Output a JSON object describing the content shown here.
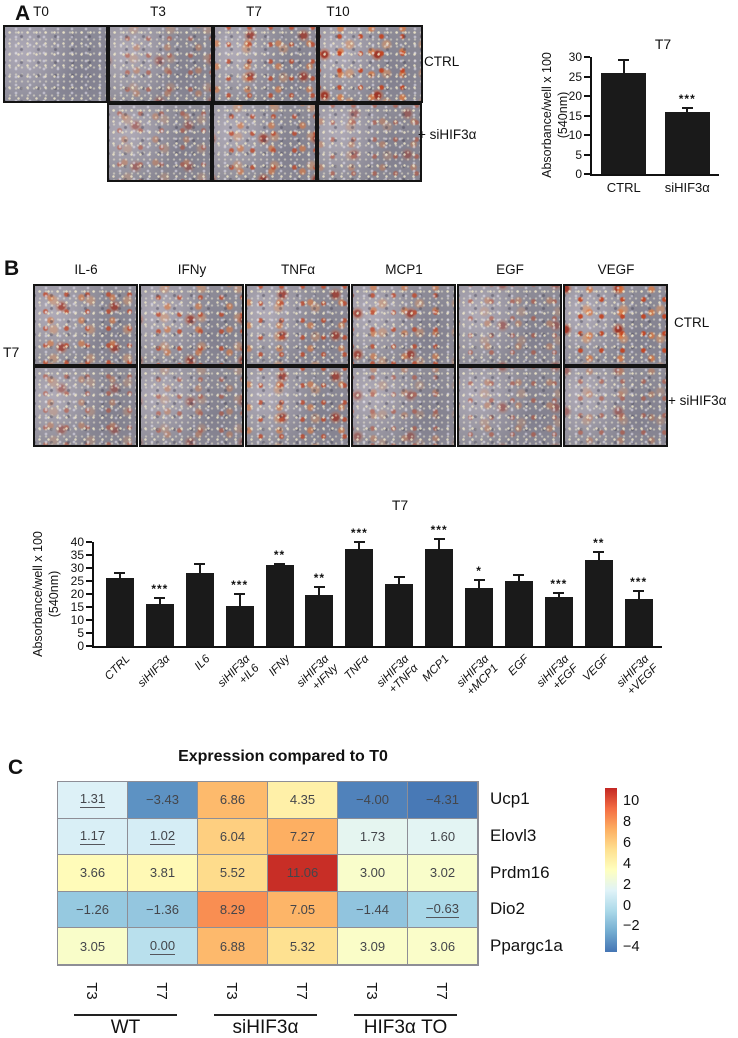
{
  "panelA": {
    "label": "A",
    "timepoints": [
      "T0",
      "T3",
      "T7",
      "T10"
    ],
    "row_labels": [
      "CTRL",
      "+ siHIF3α"
    ],
    "micrographs": {
      "row1": [
        {
          "timepoint": "T0",
          "condition": "CTRL",
          "stain": 0
        },
        {
          "timepoint": "T3",
          "condition": "CTRL",
          "stain": 1
        },
        {
          "timepoint": "T7",
          "condition": "CTRL",
          "stain": 2
        },
        {
          "timepoint": "T10",
          "condition": "CTRL",
          "stain": 3
        }
      ],
      "row2": [
        {
          "timepoint": "T3",
          "condition": "+ siHIF3α",
          "stain": 1
        },
        {
          "timepoint": "T7",
          "condition": "+ siHIF3α",
          "stain": 2
        },
        {
          "timepoint": "T10",
          "condition": "+ siHIF3α",
          "stain": 1
        }
      ]
    }
  },
  "panelB": {
    "label": "B",
    "treatments": [
      "IL-6",
      "IFNy",
      "TNFα",
      "MCP1",
      "EGF",
      "VEGF"
    ],
    "timepoint_label": "T7",
    "row_labels": [
      "CTRL",
      "+ siHIF3α"
    ],
    "micrographs": {
      "row1": [
        {
          "treatment": "IL-6",
          "condition": "CTRL",
          "stain": 2
        },
        {
          "treatment": "IFNy",
          "condition": "CTRL",
          "stain": 2
        },
        {
          "treatment": "TNFα",
          "condition": "CTRL",
          "stain": 2
        },
        {
          "treatment": "MCP1",
          "condition": "CTRL",
          "stain": 2
        },
        {
          "treatment": "EGF",
          "condition": "CTRL",
          "stain": 1
        },
        {
          "treatment": "VEGF",
          "condition": "CTRL",
          "stain": 3
        }
      ],
      "row2": [
        {
          "treatment": "IL-6",
          "condition": "+ siHIF3α",
          "stain": 1
        },
        {
          "treatment": "IFNy",
          "condition": "+ siHIF3α",
          "stain": 1
        },
        {
          "treatment": "TNFα",
          "condition": "+ siHIF3α",
          "stain": 2
        },
        {
          "treatment": "MCP1",
          "condition": "+ siHIF3α",
          "stain": 1
        },
        {
          "treatment": "EGF",
          "condition": "+ siHIF3α",
          "stain": 1
        },
        {
          "treatment": "VEGF",
          "condition": "+ siHIF3α",
          "stain": 1
        }
      ]
    }
  },
  "panelC": {
    "label": "C"
  },
  "chart_data": [
    {
      "id": "panelA_bar",
      "type": "bar",
      "title": "T7",
      "ylabel": "Absorbance/well x 100\n(540nm)",
      "ylim": [
        0,
        30
      ],
      "yticks": [
        0,
        5,
        10,
        15,
        20,
        25,
        30
      ],
      "categories": [
        "CTRL",
        "siHIF3α"
      ],
      "values": [
        26,
        16
      ],
      "errors": [
        3.5,
        1.2
      ],
      "sig": [
        "",
        "***"
      ]
    },
    {
      "id": "panelB_bar",
      "type": "bar",
      "title": "T7",
      "ylabel": "Absorbance/well x 100\n(540nm)",
      "ylim": [
        0,
        40
      ],
      "yticks": [
        0,
        5,
        10,
        15,
        20,
        25,
        30,
        35,
        40
      ],
      "categories": [
        "CTRL",
        "siHIF3α",
        "IL6",
        "siHIF3α\n+IL6",
        "IFNy",
        "siHIF3α\n+IFNy",
        "TNFα",
        "siHIF3α\n+TNFα",
        "MCP1",
        "siHIF3α\n+MCP1",
        "EGF",
        "siHIF3α\n+EGF",
        "VEGF",
        "siHIF3α\n+VEGF"
      ],
      "values": [
        26,
        16,
        28,
        15.5,
        31,
        19.5,
        37.5,
        24,
        37.5,
        22.3,
        25,
        18.8,
        33,
        18
      ],
      "errors": [
        2.3,
        3,
        4,
        5,
        1,
        3.5,
        3,
        3,
        4,
        3.5,
        2.7,
        2,
        3.5,
        3.5
      ],
      "sig": [
        "",
        "***",
        "",
        "***",
        "**",
        "**",
        "***",
        "",
        "***",
        "*",
        "",
        "***",
        "**",
        "***"
      ]
    },
    {
      "id": "heatmap",
      "type": "heatmap",
      "title": "Expression compared to T0",
      "rows": [
        "Ucp1",
        "Elovl3",
        "Prdm16",
        "Dio2",
        "Ppargc1a"
      ],
      "col_groups": [
        {
          "label": "WT",
          "cols": [
            "T3",
            "T7"
          ]
        },
        {
          "label": "siHIF3α",
          "cols": [
            "T3",
            "T7"
          ]
        },
        {
          "label": "HIF3α TO",
          "cols": [
            "T3",
            "T7"
          ]
        }
      ],
      "values": [
        [
          1.31,
          -3.43,
          6.86,
          4.35,
          -4.0,
          -4.31
        ],
        [
          1.17,
          1.02,
          6.04,
          7.27,
          1.73,
          1.6
        ],
        [
          3.66,
          3.81,
          5.52,
          11.06,
          3.0,
          3.02
        ],
        [
          -1.26,
          -1.36,
          8.29,
          7.05,
          -1.44,
          -0.63
        ],
        [
          3.05,
          0.0,
          6.88,
          5.32,
          3.09,
          3.06
        ]
      ],
      "underlined": [
        [
          true,
          false,
          false,
          false,
          false,
          false
        ],
        [
          true,
          true,
          false,
          false,
          false,
          false
        ],
        [
          false,
          false,
          false,
          false,
          false,
          false
        ],
        [
          false,
          false,
          false,
          false,
          false,
          true
        ],
        [
          false,
          true,
          false,
          false,
          false,
          false
        ]
      ],
      "colorbar": {
        "ticks": [
          10,
          8,
          6,
          4,
          2,
          0,
          -2,
          -4
        ],
        "domain": [
          -4.45,
          11.25
        ],
        "stops": [
          "#4575b4",
          "#74add1",
          "#abd9e9",
          "#e0f3f8",
          "#ffffbf",
          "#fee090",
          "#fdae61",
          "#f46d43",
          "#c32723"
        ]
      }
    }
  ]
}
